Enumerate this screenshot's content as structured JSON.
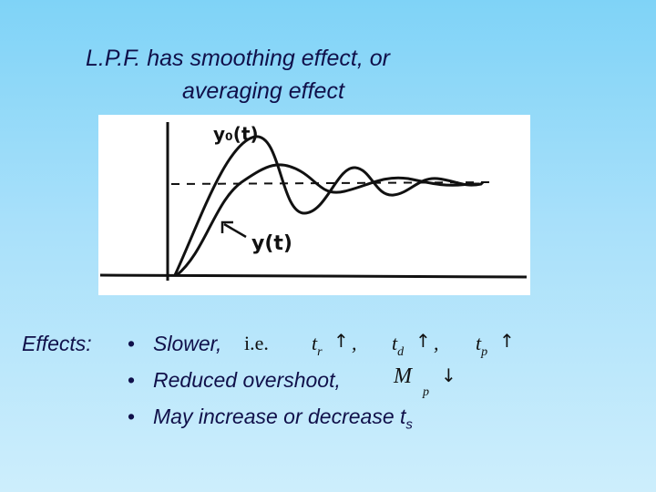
{
  "slide": {
    "title_line1": "L.P.F. has smoothing effect, or",
    "title_line2": "averaging effect"
  },
  "figure": {
    "label_top": "y₀(t)",
    "label_bottom": "y(t)"
  },
  "effects": {
    "heading": "Effects:",
    "bullet_char": "•",
    "item1_text": "Slower,",
    "item1_ie": "i.e.",
    "tr": "t",
    "tr_sub": "r",
    "td": "t",
    "td_sub": "d",
    "tp": "t",
    "tp_sub": "p",
    "up_arrow": "↑",
    "down_arrow": "↓",
    "comma": ",",
    "item2_text": "Reduced overshoot,",
    "mp": "M",
    "mp_sub": "p",
    "item3_text": "May increase or decrease t",
    "item3_sub": "s"
  }
}
